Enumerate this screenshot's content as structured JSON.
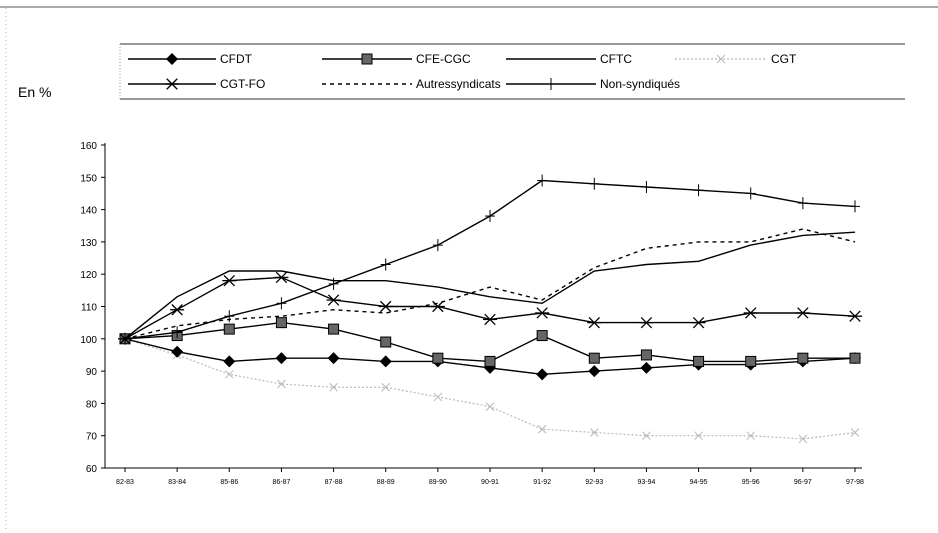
{
  "chart_data": {
    "type": "line",
    "ylabel": "En %",
    "ylim": [
      60,
      160
    ],
    "yticks": [
      60,
      70,
      80,
      90,
      100,
      110,
      120,
      130,
      140,
      150,
      160
    ],
    "grid": false,
    "legend_position": "top",
    "categories": [
      "82-83",
      "83-84",
      "85-86",
      "86-87",
      "87-88",
      "88-89",
      "89-90",
      "90-91",
      "91-92",
      "92-93",
      "93-94",
      "94-95",
      "95-96",
      "96-97",
      "97-98"
    ],
    "series": [
      {
        "name": "CFDT",
        "style": "diamond",
        "color": "#000000",
        "values": [
          100,
          96,
          93,
          94,
          94,
          93,
          93,
          91,
          89,
          90,
          91,
          92,
          92,
          93,
          94
        ]
      },
      {
        "name": "CFE-CGC",
        "style": "square",
        "color": "#000000",
        "values": [
          100,
          101,
          103,
          105,
          103,
          99,
          94,
          93,
          101,
          94,
          95,
          93,
          93,
          94,
          94
        ]
      },
      {
        "name": "CFTC",
        "style": "solid",
        "color": "#000000",
        "values": [
          100,
          113,
          121,
          121,
          118,
          118,
          116,
          113,
          111,
          121,
          123,
          124,
          129,
          132,
          133
        ]
      },
      {
        "name": "CGT",
        "style": "light",
        "color": "#b8b8b8",
        "values": [
          100,
          95,
          89,
          86,
          85,
          85,
          82,
          79,
          72,
          71,
          70,
          70,
          70,
          69,
          71
        ]
      },
      {
        "name": "CGT-FO",
        "style": "star",
        "color": "#000000",
        "values": [
          100,
          109,
          118,
          119,
          112,
          110,
          110,
          106,
          108,
          105,
          105,
          105,
          108,
          108,
          107
        ]
      },
      {
        "name": "Autressyndicats",
        "style": "dashed",
        "color": "#000000",
        "values": [
          100,
          104,
          106,
          107,
          109,
          108,
          111,
          116,
          112,
          122,
          128,
          130,
          130,
          134,
          130
        ]
      },
      {
        "name": "Non-syndiqués",
        "style": "plus",
        "color": "#000000",
        "values": [
          100,
          102,
          107,
          111,
          117,
          123,
          129,
          138,
          149,
          148,
          147,
          146,
          145,
          142,
          141
        ]
      }
    ]
  }
}
